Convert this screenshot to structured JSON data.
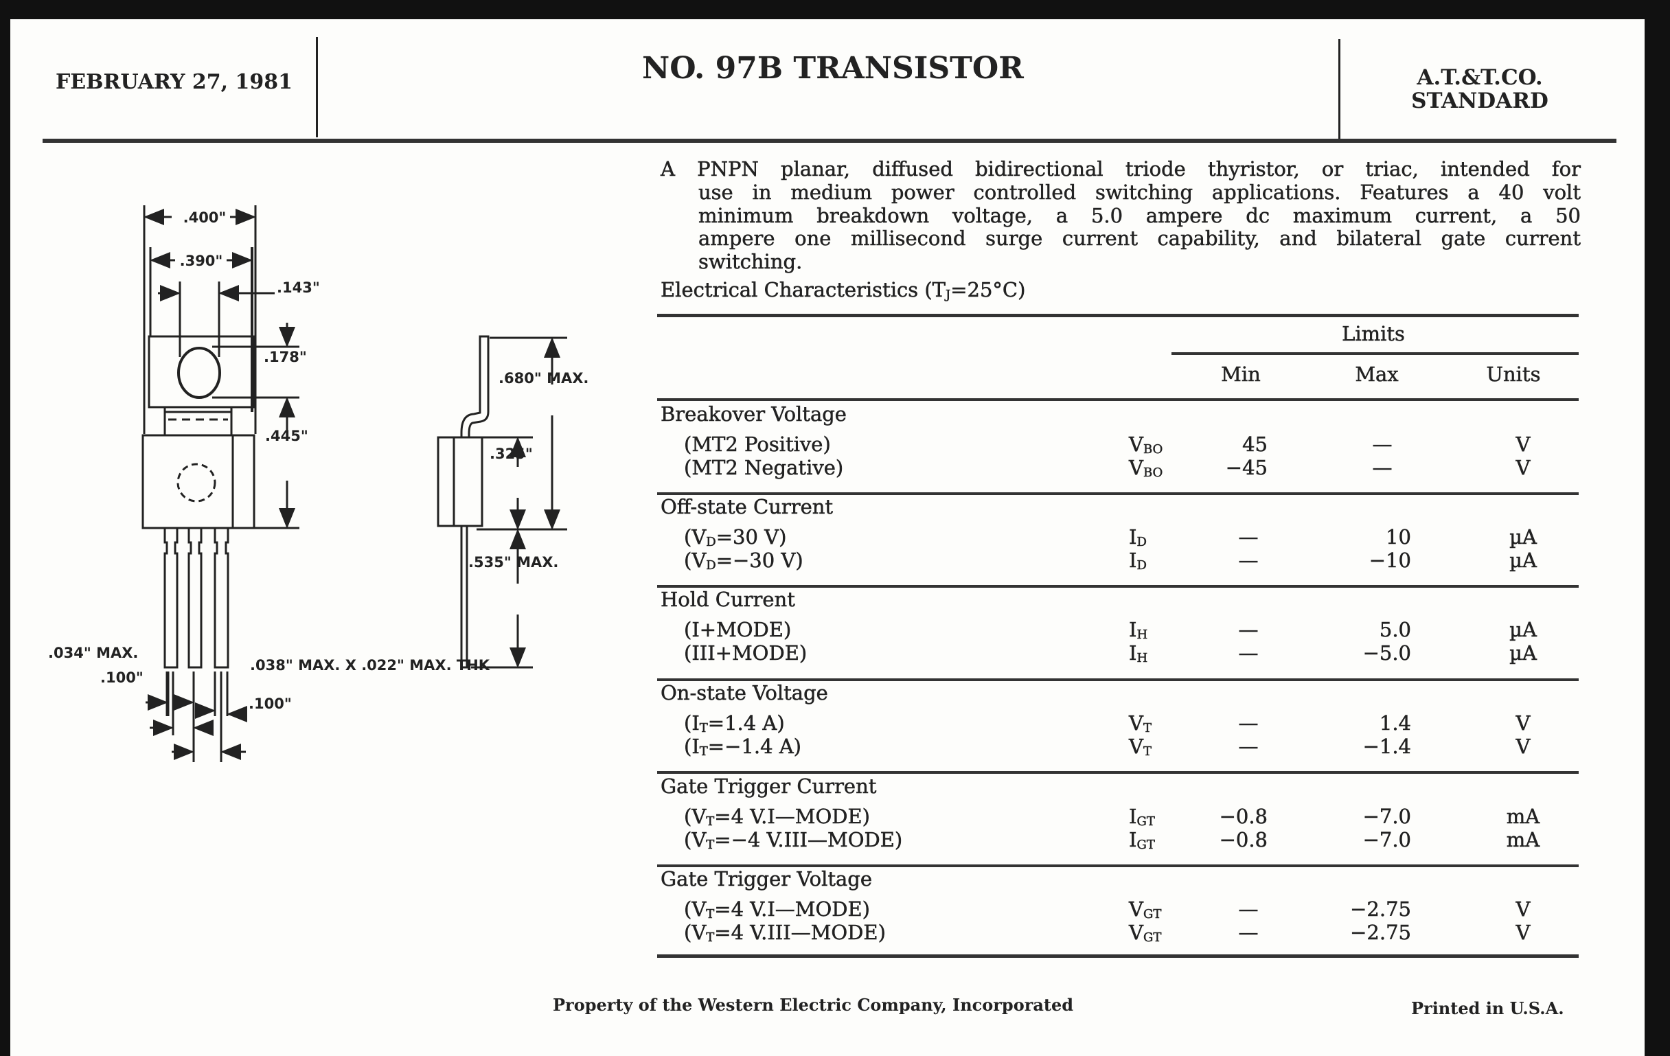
{
  "header": {
    "date": "FEBRUARY 27, 1981",
    "title": "NO. 97B TRANSISTOR",
    "standard_line1": "A.T.&T.CO.",
    "standard_line2": "STANDARD"
  },
  "description": [
    "A PNPN planar, diffused bidirectional triode thyristor, or triac, intended for",
    "use in medium power controlled switching applications. Features a 40 volt",
    "minimum breakdown voltage, a 5.0 ampere dc maximum current, a 50",
    "ampere one millisecond surge current capability, and bilateral gate current",
    "switching."
  ],
  "conditions": {
    "prefix": "Electrical Characteristics (T",
    "sub": "J",
    "suffix": "=25°C)"
  },
  "table": {
    "limits_label": "Limits",
    "columns": {
      "min": "Min",
      "max": "Max",
      "units": "Units"
    },
    "sections": [
      {
        "title": "Breakover Voltage",
        "rows": [
          {
            "label": {
              "pre": "(MT2 Positive)",
              "sub": "",
              "post": ""
            },
            "symbol": {
              "main": "V",
              "sub": "BO"
            },
            "min": "45",
            "max": "—",
            "units": "V"
          },
          {
            "label": {
              "pre": "(MT2 Negative)",
              "sub": "",
              "post": ""
            },
            "symbol": {
              "main": "V",
              "sub": "BO"
            },
            "min": "−45",
            "max": "—",
            "units": "V"
          }
        ]
      },
      {
        "title": "Off-state Current",
        "rows": [
          {
            "label": {
              "pre": "(V",
              "sub": "D",
              "post": "=30 V)"
            },
            "symbol": {
              "main": "I",
              "sub": "D"
            },
            "min": "—",
            "max": "10",
            "units": "µA"
          },
          {
            "label": {
              "pre": "(V",
              "sub": "D",
              "post": "=−30 V)"
            },
            "symbol": {
              "main": "I",
              "sub": "D"
            },
            "min": "—",
            "max": "−10",
            "units": "µA"
          }
        ]
      },
      {
        "title": "Hold Current",
        "rows": [
          {
            "label": {
              "pre": "(I+MODE)",
              "sub": "",
              "post": ""
            },
            "symbol": {
              "main": "I",
              "sub": "H"
            },
            "min": "—",
            "max": "5.0",
            "units": "µA"
          },
          {
            "label": {
              "pre": "(III+MODE)",
              "sub": "",
              "post": ""
            },
            "symbol": {
              "main": "I",
              "sub": "H"
            },
            "min": "—",
            "max": "−5.0",
            "units": "µA"
          }
        ]
      },
      {
        "title": "On-state Voltage",
        "rows": [
          {
            "label": {
              "pre": "(I",
              "sub": "T",
              "post": "=1.4 A)"
            },
            "symbol": {
              "main": "V",
              "sub": "T"
            },
            "min": "—",
            "max": "1.4",
            "units": "V"
          },
          {
            "label": {
              "pre": "(I",
              "sub": "T",
              "post": "=−1.4 A)"
            },
            "symbol": {
              "main": "V",
              "sub": "T"
            },
            "min": "—",
            "max": "−1.4",
            "units": "V"
          }
        ]
      },
      {
        "title": "Gate Trigger Current",
        "rows": [
          {
            "label": {
              "pre": "(V",
              "sub": "T",
              "post": "=4 V.I—MODE)"
            },
            "symbol": {
              "main": "I",
              "sub": "GT"
            },
            "min": "−0.8",
            "max": "−7.0",
            "units": "mA"
          },
          {
            "label": {
              "pre": "(V",
              "sub": "T",
              "post": "=−4 V.III—MODE)"
            },
            "symbol": {
              "main": "I",
              "sub": "GT"
            },
            "min": "−0.8",
            "max": "−7.0",
            "units": "mA"
          }
        ]
      },
      {
        "title": "Gate Trigger Voltage",
        "rows": [
          {
            "label": {
              "pre": "(V",
              "sub": "T",
              "post": "=4 V.I—MODE)"
            },
            "symbol": {
              "main": "V",
              "sub": "GT"
            },
            "min": "—",
            "max": "−2.75",
            "units": "V"
          },
          {
            "label": {
              "pre": "(V",
              "sub": "T",
              "post": "=4 V.III—MODE)"
            },
            "symbol": {
              "main": "V",
              "sub": "GT"
            },
            "min": "—",
            "max": "−2.75",
            "units": "V"
          }
        ]
      }
    ]
  },
  "drawing": {
    "dim_400": ".400\"",
    "dim_390": ".390\"",
    "dim_143": ".143\"",
    "dim_178": ".178\"",
    "dim_445": ".445\"",
    "dim_680": ".680\" MAX.",
    "dim_325": ".325\"",
    "dim_535": ".535\" MAX.",
    "dim_034": ".034\" MAX.",
    "dim_100_left": ".100\"",
    "dim_038": ".038\" MAX. X .022\" MAX. THK",
    "dim_100_right": ".100\""
  },
  "footer": {
    "property": "Property of the Western Electric Company, Incorporated",
    "printed": "Printed in U.S.A."
  }
}
